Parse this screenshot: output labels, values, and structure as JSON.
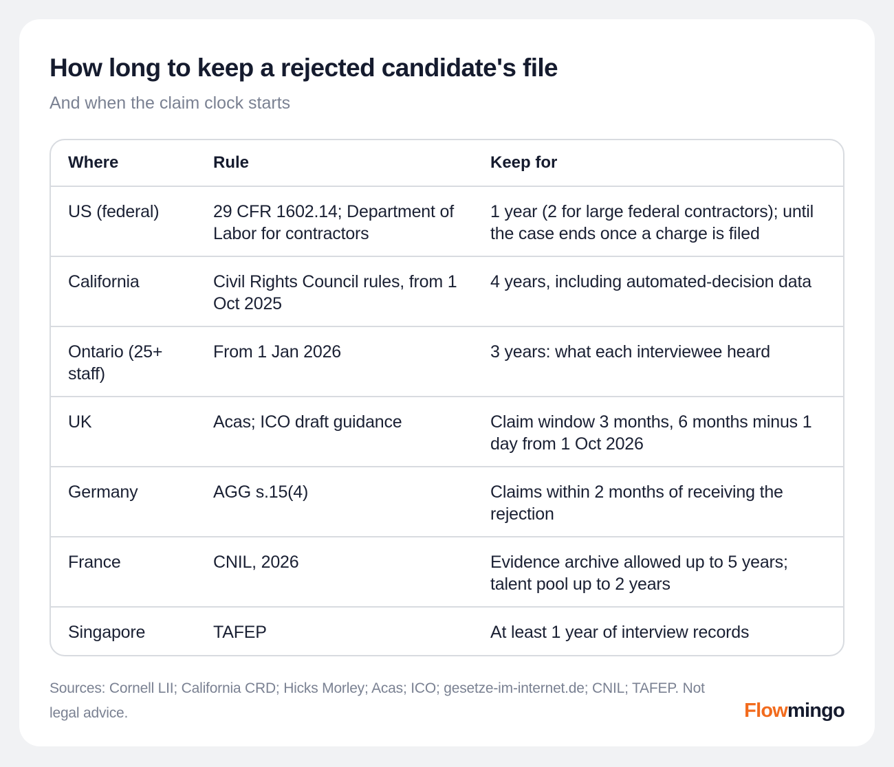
{
  "header": {
    "title": "How long to keep a rejected candidate's file",
    "subtitle": "And when the claim clock starts"
  },
  "table": {
    "columns": [
      "Where",
      "Rule",
      "Keep for"
    ],
    "rows": [
      {
        "where": "US (federal)",
        "rule": "29 CFR 1602.14; Department of Labor for contractors",
        "keep": "1 year (2 for large federal contractors); until the case ends once a charge is filed"
      },
      {
        "where": "California",
        "rule": "Civil Rights Council rules, from 1 Oct 2025",
        "keep": "4 years, including automated-decision data"
      },
      {
        "where": "Ontario (25+ staff)",
        "rule": "From 1 Jan 2026",
        "keep": "3 years: what each interviewee heard"
      },
      {
        "where": "UK",
        "rule": "Acas; ICO draft guidance",
        "keep": "Claim window 3 months, 6 months minus 1 day from 1 Oct 2026"
      },
      {
        "where": "Germany",
        "rule": "AGG s.15(4)",
        "keep": "Claims within 2 months of receiving the rejection"
      },
      {
        "where": "France",
        "rule": "CNIL, 2026",
        "keep": "Evidence archive allowed up to 5 years; talent pool up to 2 years"
      },
      {
        "where": "Singapore",
        "rule": "TAFEP",
        "keep": "At least 1 year of interview records"
      }
    ]
  },
  "footer": {
    "sources": "Sources: Cornell LII; California CRD; Hicks Morley; Acas; ICO; gesetze-im-internet.de; CNIL; TAFEP. Not legal advice.",
    "brand_part1": "Flow",
    "brand_part2": "mingo"
  },
  "colors": {
    "brand_accent": "#f26b1d",
    "text_primary": "#151b2e",
    "text_muted": "#7a8192",
    "border": "#d8dbe0",
    "page_background": "#f1f2f4",
    "card_background": "#ffffff"
  }
}
